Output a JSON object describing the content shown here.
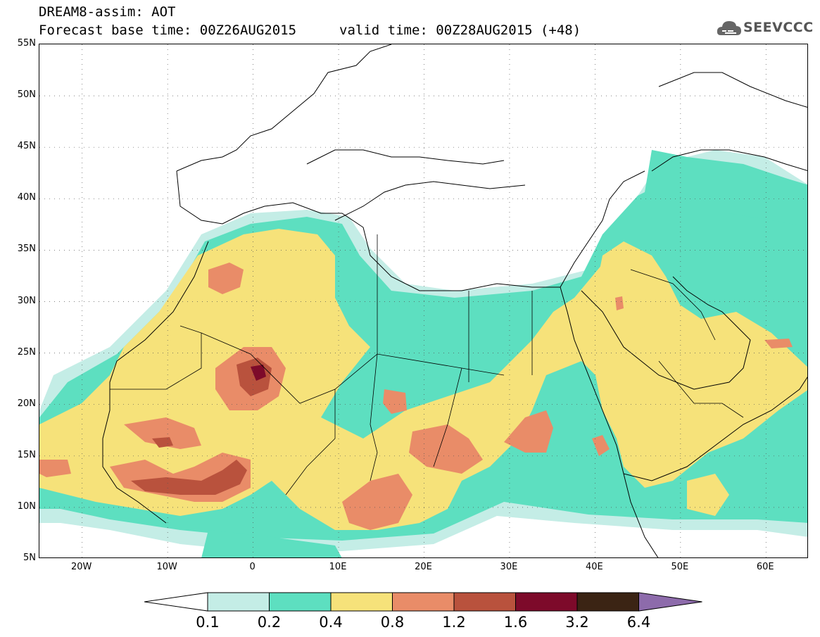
{
  "header": {
    "title": "DREAM8-assim: AOT",
    "base_time": "Forecast base time: 00Z26AUG2015",
    "valid_time": "valid time: 00Z28AUG2015 (+48)",
    "logo_text": "SEEVCCC"
  },
  "map": {
    "lon_range": [
      -25,
      65
    ],
    "lat_range": [
      5,
      55
    ],
    "lat_ticks": [
      "55N",
      "50N",
      "45N",
      "40N",
      "35N",
      "30N",
      "25N",
      "20N",
      "15N",
      "10N",
      "5N"
    ],
    "lon_ticks": [
      "20W",
      "10W",
      "0",
      "10E",
      "20E",
      "30E",
      "40E",
      "50E",
      "60E"
    ]
  },
  "legend": {
    "labels": [
      "0.1",
      "0.2",
      "0.4",
      "0.8",
      "1.2",
      "1.6",
      "3.2",
      "6.4"
    ],
    "colors": [
      "#ffffff",
      "#c4ede6",
      "#5ddfc0",
      "#f6e27a",
      "#e98c68",
      "#b9523d",
      "#7d0a2a",
      "#3b2414",
      "#8d6bab"
    ]
  }
}
